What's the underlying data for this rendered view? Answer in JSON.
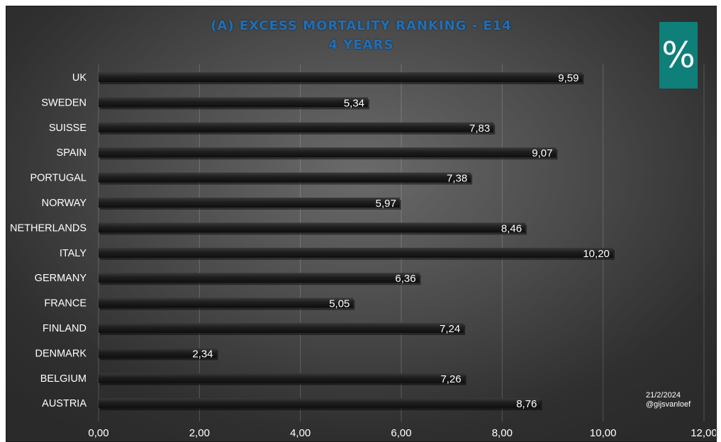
{
  "chart_data": {
    "type": "bar",
    "orientation": "horizontal",
    "title": "(A) EXCESS MORTALITY RANKING - E14",
    "subtitle": "4 YEARS",
    "categories": [
      "UK",
      "SWEDEN",
      "SUISSE",
      "SPAIN",
      "PORTUGAL",
      "NORWAY",
      "NETHERLANDS",
      "ITALY",
      "GERMANY",
      "FRANCE",
      "FINLAND",
      "DENMARK",
      "BELGIUM",
      "AUSTRIA"
    ],
    "values": [
      9.59,
      5.34,
      7.83,
      9.07,
      7.38,
      5.97,
      8.46,
      10.2,
      6.36,
      5.05,
      7.24,
      2.34,
      7.26,
      8.76
    ],
    "value_labels": [
      "9,59",
      "5,34",
      "7,83",
      "9,07",
      "7,38",
      "5,97",
      "8,46",
      "10,20",
      "6,36",
      "5,05",
      "7,24",
      "2,34",
      "7,26",
      "8,76"
    ],
    "xlim": [
      0,
      12
    ],
    "x_ticks": [
      0,
      2,
      4,
      6,
      8,
      10,
      12
    ],
    "x_tick_labels": [
      "0,00",
      "2,00",
      "4,00",
      "6,00",
      "8,00",
      "10,00",
      "12,00"
    ],
    "xlabel": "",
    "ylabel": "",
    "grid": "vertical",
    "legend": "none"
  },
  "logo": {
    "symbol": "%"
  },
  "credit": {
    "date": "21/2/2024",
    "handle": "@gijsvanloef"
  },
  "colors": {
    "title": "#1f6fb7",
    "bar": "#1e1e1e",
    "label": "#ffffff",
    "logo_bg": "#0f7f7a"
  }
}
